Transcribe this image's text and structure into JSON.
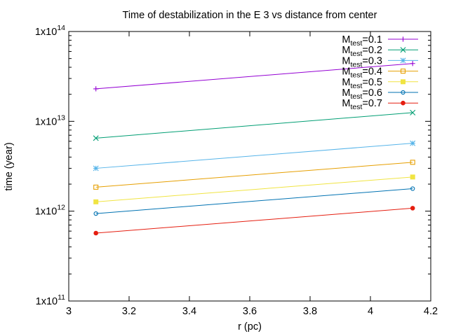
{
  "chart_data": {
    "type": "line",
    "title": "Time of destabilization in the E 3 vs distance from center",
    "xlabel": "r (pc)",
    "ylabel": "time (year)",
    "xlim": [
      3,
      4.2
    ],
    "ylim": [
      100000000000.0,
      100000000000000.0
    ],
    "y_scale": "log",
    "grid": false,
    "legend_position": "top-right",
    "x_ticks": [
      3,
      3.2,
      3.4,
      3.6,
      3.8,
      4,
      4.2
    ],
    "x_tick_labels": [
      "3",
      "3.2",
      "3.4",
      "3.6",
      "3.8",
      "4",
      "4.2"
    ],
    "y_ticks": [
      {
        "value": 100000000000.0,
        "base": "1x10",
        "exp": "11"
      },
      {
        "value": 1000000000000.0,
        "base": "1x10",
        "exp": "12"
      },
      {
        "value": 10000000000000.0,
        "base": "1x10",
        "exp": "13"
      },
      {
        "value": 100000000000000.0,
        "base": "1x10",
        "exp": "14"
      }
    ],
    "x": [
      3.09,
      4.14
    ],
    "series": [
      {
        "name_main": "M",
        "name_sub": "test",
        "name_rest": "=0.1",
        "color": "#9400d3",
        "marker": "plus",
        "values": [
          23000000000000.0,
          44000000000000.0
        ]
      },
      {
        "name_main": "M",
        "name_sub": "test",
        "name_rest": "=0.2",
        "color": "#009e73",
        "marker": "cross",
        "values": [
          6500000000000.0,
          12500000000000.0
        ]
      },
      {
        "name_main": "M",
        "name_sub": "test",
        "name_rest": "=0.3",
        "color": "#56b4e9",
        "marker": "star",
        "values": [
          3000000000000.0,
          5700000000000.0
        ]
      },
      {
        "name_main": "M",
        "name_sub": "test",
        "name_rest": "=0.4",
        "color": "#e69f00",
        "marker": "square-open",
        "values": [
          1850000000000.0,
          3500000000000.0
        ]
      },
      {
        "name_main": "M",
        "name_sub": "test",
        "name_rest": "=0.5",
        "color": "#f0e442",
        "marker": "square-filled",
        "values": [
          1270000000000.0,
          2400000000000.0
        ]
      },
      {
        "name_main": "M",
        "name_sub": "test",
        "name_rest": "=0.6",
        "color": "#0072b2",
        "marker": "circle-open",
        "values": [
          940000000000.0,
          1780000000000.0
        ]
      },
      {
        "name_main": "M",
        "name_sub": "test",
        "name_rest": "=0.7",
        "color": "#e51e10",
        "marker": "circle-filled",
        "values": [
          570000000000.0,
          1080000000000.0
        ]
      }
    ]
  }
}
